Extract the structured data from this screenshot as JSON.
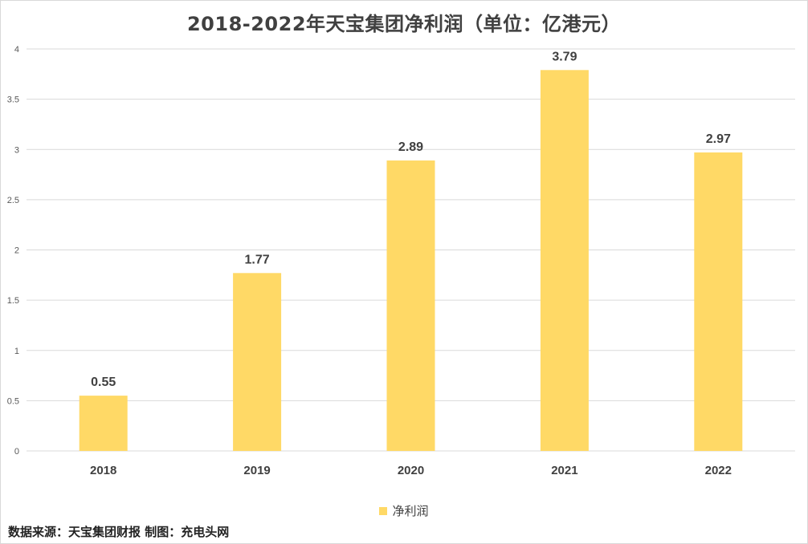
{
  "chart_data": {
    "type": "bar",
    "title": "2018-2022年天宝集团净利润（单位：亿港元）",
    "categories": [
      "2018",
      "2019",
      "2020",
      "2021",
      "2022"
    ],
    "series": [
      {
        "name": "净利润",
        "values": [
          0.55,
          1.77,
          2.89,
          3.79,
          2.97
        ]
      }
    ],
    "data_labels": [
      "0.55",
      "1.77",
      "2.89",
      "3.79",
      "2.97"
    ],
    "y_ticks": [
      "0",
      "0.5",
      "1",
      "1.5",
      "2",
      "2.5",
      "3",
      "3.5",
      "4"
    ],
    "ylim": [
      0,
      4
    ],
    "grid": true,
    "legend_position": "bottom",
    "bar_color": "#FFD966"
  },
  "footer": {
    "source": "数据来源：天宝集团财报  制图：充电头网"
  }
}
